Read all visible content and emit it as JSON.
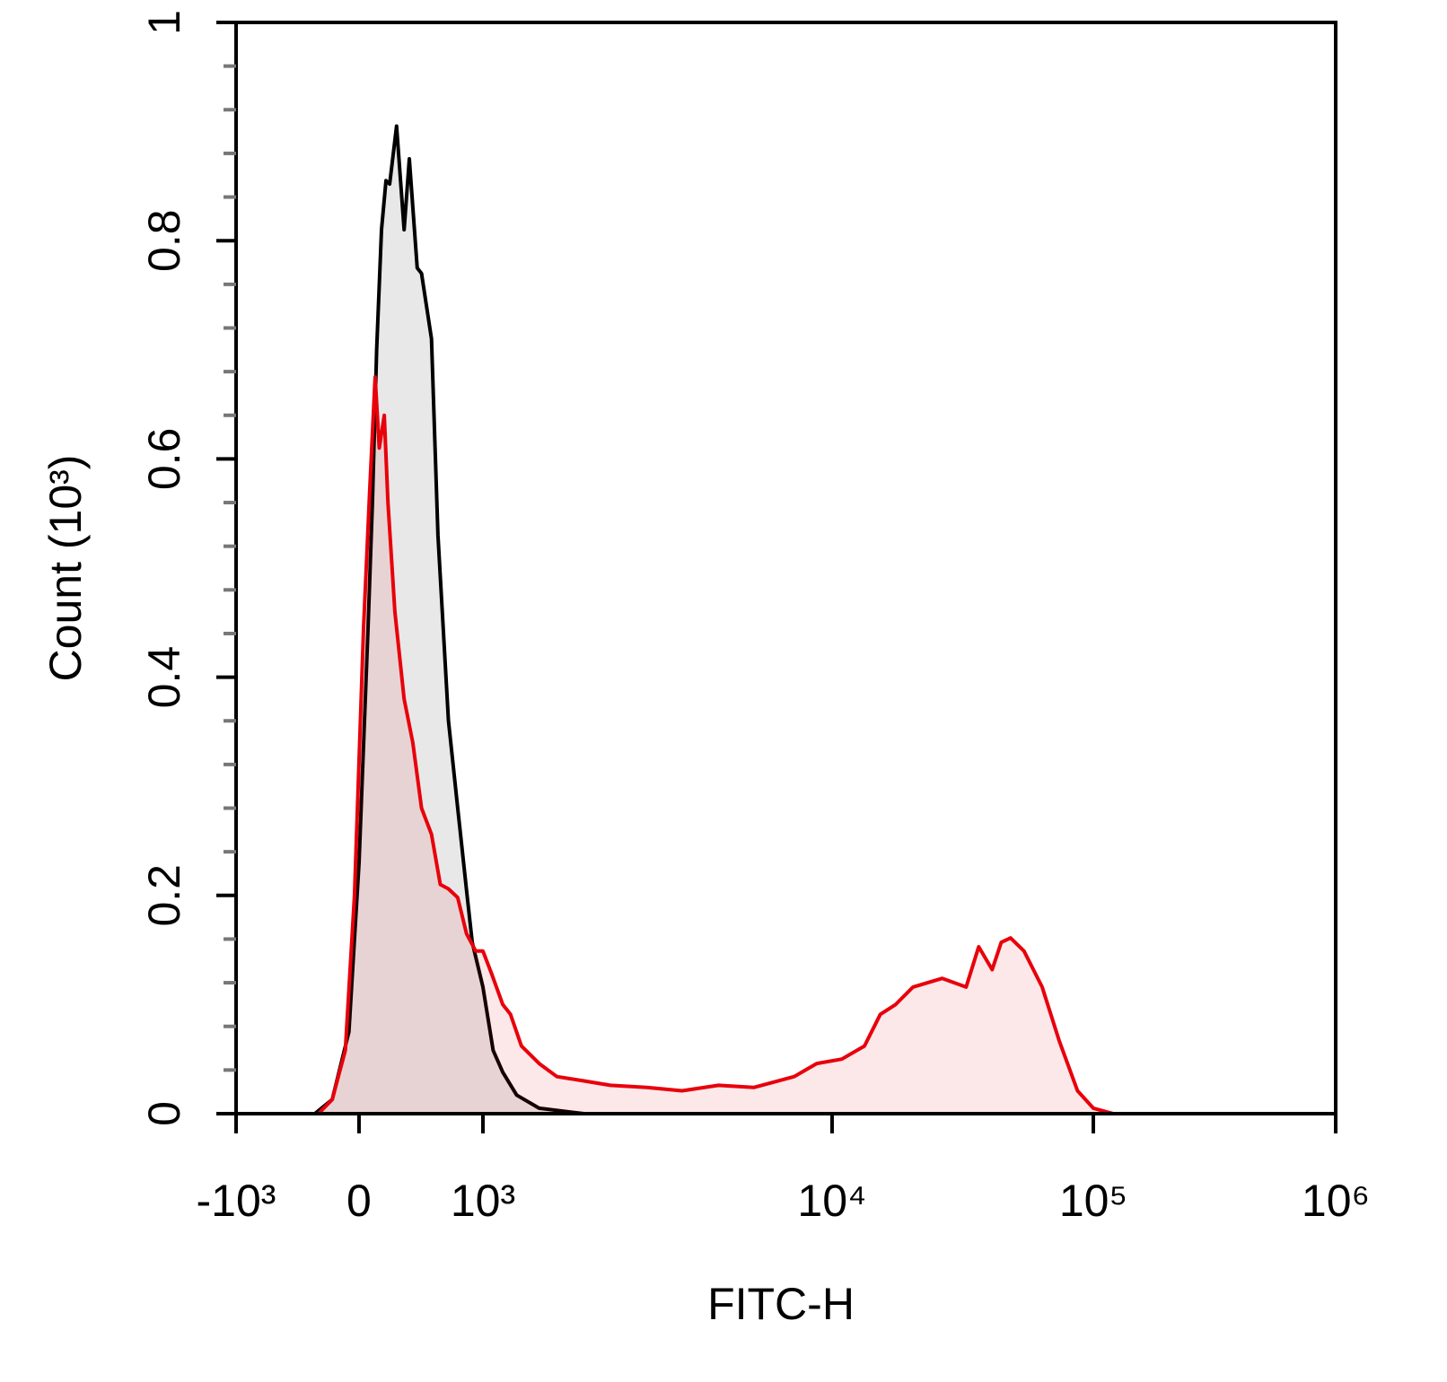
{
  "chart_data": {
    "type": "histogram-overlay",
    "xlabel": "FITC-H",
    "ylabel": "Count (10³)",
    "xscale": "biexponential",
    "xlim": [
      -1000,
      1000000
    ],
    "xticks": [
      {
        "value": -1000,
        "label": "-10³"
      },
      0,
      {
        "value": 1000,
        "label": "10³"
      },
      {
        "value": 10000,
        "label": "10⁴"
      },
      {
        "value": 100000,
        "label": "10⁵"
      },
      {
        "value": 1000000,
        "label": "10⁶"
      }
    ],
    "ylim": [
      0,
      1
    ],
    "yticks": [
      0,
      0.2,
      0.4,
      0.6,
      0.8,
      1
    ],
    "yminorticks": [
      0.04,
      0.08,
      0.12,
      0.16,
      0.24,
      0.28,
      0.32,
      0.36,
      0.44,
      0.48,
      0.52,
      0.56,
      0.64,
      0.68,
      0.72,
      0.76,
      0.84,
      0.88,
      0.92,
      0.96
    ],
    "series": [
      {
        "color": "#000000",
        "x": [
          -600,
          -130,
          -70,
          -25,
          0,
          22,
          33,
          44,
          57,
          70,
          81,
          104,
          132,
          154,
          192,
          216,
          280,
          330,
          430,
          540,
          670,
          770,
          1000,
          1070,
          1140,
          1250,
          1450,
          1950
        ],
        "values": [
          0,
          0,
          0.013,
          0.075,
          0.23,
          0.445,
          0.56,
          0.7,
          0.81,
          0.855,
          0.852,
          0.905,
          0.81,
          0.875,
          0.775,
          0.77,
          0.71,
          0.53,
          0.36,
          0.28,
          0.205,
          0.157,
          0.116,
          0.058,
          0.038,
          0.017,
          0.005,
          0
        ]
      },
      {
        "color": "#e8000b",
        "x": [
          -116,
          -70,
          -34,
          -11,
          11,
          26,
          40,
          51,
          65,
          76,
          98,
          132,
          170,
          216,
          280,
          350,
          430,
          540,
          670,
          840,
          1000,
          1060,
          1140,
          1200,
          1290,
          1450,
          1630,
          1950,
          2320,
          2950,
          3720,
          4730,
          5970,
          7790,
          9040,
          10900,
          13300,
          15300,
          17500,
          20400,
          26400,
          32600,
          36400,
          41000,
          44400,
          48200,
          54300,
          63700,
          74000,
          87000,
          100000,
          121000
        ],
        "values": [
          0,
          0.013,
          0.058,
          0.2,
          0.445,
          0.57,
          0.675,
          0.61,
          0.64,
          0.56,
          0.46,
          0.38,
          0.34,
          0.28,
          0.256,
          0.21,
          0.206,
          0.198,
          0.165,
          0.149,
          0.149,
          0.128,
          0.1,
          0.091,
          0.062,
          0.046,
          0.034,
          0.03,
          0.026,
          0.024,
          0.021,
          0.026,
          0.024,
          0.034,
          0.046,
          0.05,
          0.062,
          0.091,
          0.1,
          0.116,
          0.124,
          0.116,
          0.153,
          0.132,
          0.157,
          0.161,
          0.149,
          0.116,
          0.067,
          0.021,
          0.005,
          0
        ]
      }
    ]
  }
}
